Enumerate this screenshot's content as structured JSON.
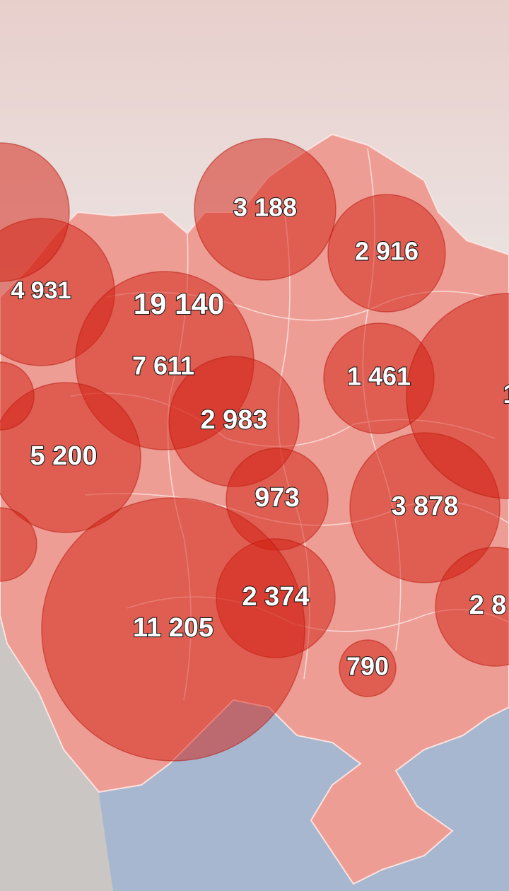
{
  "map": {
    "colors": {
      "terrain_light": "#ecebea",
      "terrain_mid": "#c9c6c4",
      "terrain_top": "#e8cfcc",
      "sea": "#a7b7d0",
      "country_fill": "#ee9d94",
      "region_border": "#fbe3e0",
      "bubble_fill": "#d11d10",
      "bubble_edge": "#b5170c"
    },
    "bubbles": [
      {
        "label": "4 931",
        "value": 4931
      },
      {
        "label": "19 140",
        "value": 19140
      },
      {
        "label": "7 611",
        "value": 7611
      },
      {
        "label": "3 188",
        "value": 3188
      },
      {
        "label": "2 916",
        "value": 2916
      },
      {
        "label": "1 461",
        "value": 1461
      },
      {
        "label": "2 983",
        "value": 2983
      },
      {
        "label": "5 200",
        "value": 5200
      },
      {
        "label": "973",
        "value": 973
      },
      {
        "label": "3 878",
        "value": 3878
      },
      {
        "label": "2 374",
        "value": 2374
      },
      {
        "label": "11 205",
        "value": 11205
      },
      {
        "label": "790",
        "value": 790
      },
      {
        "label": "2 8",
        "value": null
      },
      {
        "label": "1",
        "value": null
      },
      {
        "label": "",
        "value": null
      },
      {
        "label": "",
        "value": null
      },
      {
        "label": "",
        "value": null
      }
    ]
  }
}
